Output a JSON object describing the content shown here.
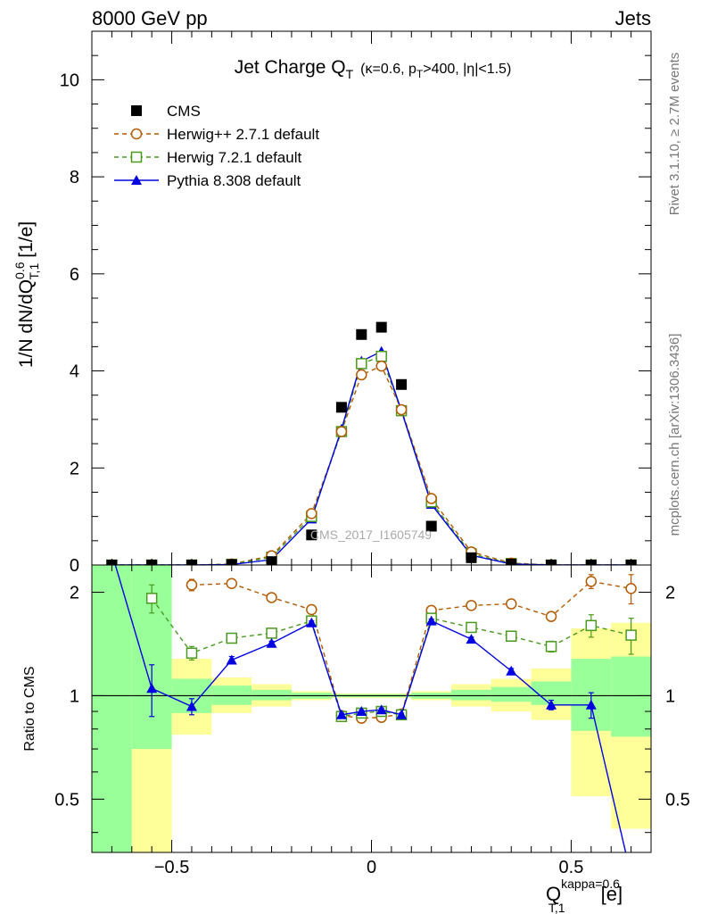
{
  "header": {
    "left_label": "8000 GeV pp",
    "right_label": "Jets"
  },
  "side_labels": {
    "rivet": "Rivet 3.1.10, ≥ 2.7M events",
    "mcplots": "mcplots.cern.ch [arXiv:1306.3436]"
  },
  "watermark": "CMS_2017_I1605749",
  "chart_data": [
    {
      "type": "scatter",
      "panel": "main",
      "title": "Jet Charge Q",
      "title_sub": "T",
      "title_details": "(κ=0.6, p",
      "title_details_sub": "T",
      "title_details_rest": ">400, |η|<1.5)",
      "ylabel": "1/N dN/dQ",
      "ylabel_sup": "0.6",
      "ylabel_sub": "T,1",
      "ylabel_unit": "[1/e]",
      "xlim": [
        -0.7,
        0.7
      ],
      "ylim": [
        0,
        11
      ],
      "yticks": [
        0,
        2,
        4,
        6,
        8,
        10
      ],
      "ytick_labels": [
        "0",
        "2",
        "4",
        "6",
        "8",
        "10"
      ],
      "legend_position": "top-left",
      "series": [
        {
          "name": "CMS",
          "marker": "filled-square",
          "color": "#000000",
          "x": [
            -0.65,
            -0.55,
            -0.45,
            -0.35,
            -0.25,
            -0.15,
            -0.075,
            -0.025,
            0.025,
            0.075,
            0.15,
            0.25,
            0.35,
            0.45,
            0.55,
            0.65
          ],
          "values": [
            0.0,
            0.0,
            0.0,
            0.01,
            0.07,
            0.62,
            3.25,
            4.75,
            4.9,
            3.72,
            0.8,
            0.15,
            0.02,
            0.0,
            0.0,
            0.0
          ]
        },
        {
          "name": "Herwig++ 2.7.1 default",
          "marker": "open-circle",
          "line": "dashed",
          "color": "#b35a00",
          "x": [
            -0.65,
            -0.55,
            -0.45,
            -0.35,
            -0.25,
            -0.15,
            -0.075,
            -0.025,
            0.025,
            0.075,
            0.15,
            0.25,
            0.35,
            0.45,
            0.55,
            0.65
          ],
          "values": [
            0.0,
            0.0,
            0.0,
            0.02,
            0.19,
            1.06,
            2.75,
            3.92,
            4.1,
            3.2,
            1.37,
            0.27,
            0.04,
            0.0,
            0.0,
            0.0
          ]
        },
        {
          "name": "Herwig 7.2.1 default",
          "marker": "open-square",
          "line": "dashed",
          "color": "#4a9a1f",
          "x": [
            -0.65,
            -0.55,
            -0.45,
            -0.35,
            -0.25,
            -0.15,
            -0.075,
            -0.025,
            0.025,
            0.075,
            0.15,
            0.25,
            0.35,
            0.45,
            0.55,
            0.65
          ],
          "values": [
            0.0,
            0.0,
            0.0,
            0.015,
            0.16,
            1.0,
            2.75,
            4.15,
            4.3,
            3.18,
            1.3,
            0.23,
            0.03,
            0.0,
            0.0,
            0.0
          ]
        },
        {
          "name": "Pythia 8.308 default",
          "marker": "filled-triangle",
          "line": "solid",
          "color": "#0000e0",
          "x": [
            -0.65,
            -0.55,
            -0.45,
            -0.35,
            -0.25,
            -0.15,
            -0.075,
            -0.025,
            0.025,
            0.075,
            0.15,
            0.25,
            0.35,
            0.45,
            0.55,
            0.65
          ],
          "values": [
            0.0,
            0.0,
            0.0,
            0.01,
            0.11,
            0.95,
            2.8,
            4.2,
            4.4,
            3.18,
            1.25,
            0.2,
            0.02,
            0.0,
            0.0,
            0.0
          ]
        }
      ]
    },
    {
      "type": "line",
      "panel": "ratio",
      "ylabel": "Ratio to CMS",
      "xlabel": "Q",
      "xlabel_sup": "kappa=0.6",
      "xlabel_sub": "T,1",
      "xlabel_unit": "[e]",
      "log_scale_y": true,
      "xlim": [
        -0.7,
        0.7
      ],
      "ylim": [
        0.35,
        2.4
      ],
      "xticks": [
        -0.5,
        0,
        0.5
      ],
      "xtick_labels": [
        "−0.5",
        "0",
        "0.5"
      ],
      "yticks": [
        0.5,
        1,
        2
      ],
      "ytick_labels": [
        "0.5",
        "1",
        "2"
      ],
      "reference_line": 1,
      "uncertainty_bands": {
        "bin_edges": [
          -0.7,
          -0.6,
          -0.5,
          -0.4,
          -0.3,
          -0.2,
          -0.1,
          -0.05,
          0.0,
          0.05,
          0.1,
          0.2,
          0.3,
          0.4,
          0.5,
          0.6,
          0.7
        ],
        "inner_color": "#99ff99",
        "outer_color": "#ffff99",
        "inner_low": [
          0.3,
          0.7,
          0.89,
          0.94,
          0.97,
          0.98,
          0.99,
          0.99,
          0.99,
          0.99,
          0.98,
          0.97,
          0.96,
          0.94,
          0.79,
          0.76
        ],
        "inner_high": [
          2.4,
          2.4,
          1.12,
          1.07,
          1.04,
          1.02,
          1.01,
          1.01,
          1.01,
          1.01,
          1.02,
          1.04,
          1.06,
          1.1,
          1.28,
          1.3
        ],
        "outer_low": [
          0.3,
          0.3,
          0.77,
          0.89,
          0.93,
          0.97,
          0.985,
          0.985,
          0.985,
          0.985,
          0.97,
          0.93,
          0.9,
          0.85,
          0.51,
          0.41
        ],
        "outer_high": [
          2.4,
          2.4,
          1.28,
          1.13,
          1.08,
          1.03,
          1.015,
          1.015,
          1.015,
          1.015,
          1.03,
          1.08,
          1.12,
          1.2,
          1.57,
          1.63
        ]
      },
      "series": [
        {
          "name": "Herwig++ 2.7.1 default",
          "color": "#b35a00",
          "marker": "open-circle",
          "line": "dashed",
          "x": [
            -0.45,
            -0.35,
            -0.25,
            -0.15,
            -0.075,
            -0.025,
            0.025,
            0.075,
            0.15,
            0.25,
            0.35,
            0.45,
            0.55,
            0.65
          ],
          "values": [
            2.1,
            2.12,
            1.93,
            1.78,
            0.875,
            0.86,
            0.865,
            0.885,
            1.77,
            1.83,
            1.85,
            1.7,
            2.15,
            2.05
          ],
          "err": [
            0.08,
            0.03,
            0.03,
            0.02,
            0.01,
            0.01,
            0.01,
            0.01,
            0.02,
            0.03,
            0.03,
            0.05,
            0.1,
            0.2
          ]
        },
        {
          "name": "Herwig 7.2.1 default",
          "color": "#4a9a1f",
          "marker": "open-square",
          "line": "dashed",
          "x": [
            -0.55,
            -0.45,
            -0.35,
            -0.25,
            -0.15,
            -0.075,
            -0.025,
            0.025,
            0.075,
            0.15,
            0.25,
            0.35,
            0.45,
            0.55,
            0.65
          ],
          "values": [
            1.92,
            1.33,
            1.47,
            1.52,
            1.65,
            0.87,
            0.89,
            0.9,
            0.88,
            1.68,
            1.58,
            1.49,
            1.39,
            1.6,
            1.5
          ],
          "err": [
            0.18,
            0.06,
            0.03,
            0.03,
            0.02,
            0.01,
            0.01,
            0.01,
            0.01,
            0.02,
            0.03,
            0.03,
            0.05,
            0.12,
            0.18
          ]
        },
        {
          "name": "Pythia 8.308 default",
          "color": "#0000e0",
          "marker": "filled-triangle",
          "line": "solid",
          "x": [
            -0.65,
            -0.55,
            -0.45,
            -0.35,
            -0.25,
            -0.15,
            -0.075,
            -0.025,
            0.025,
            0.075,
            0.15,
            0.25,
            0.35,
            0.45,
            0.55,
            0.65
          ],
          "values": [
            2.6,
            1.05,
            0.93,
            1.27,
            1.42,
            1.63,
            0.88,
            0.9,
            0.91,
            0.88,
            1.65,
            1.46,
            1.18,
            0.94,
            0.94,
            0.3
          ],
          "err": [
            0.0,
            0.18,
            0.05,
            0.03,
            0.02,
            0.02,
            0.01,
            0.01,
            0.01,
            0.01,
            0.02,
            0.02,
            0.02,
            0.03,
            0.08,
            0.0
          ]
        }
      ]
    }
  ]
}
